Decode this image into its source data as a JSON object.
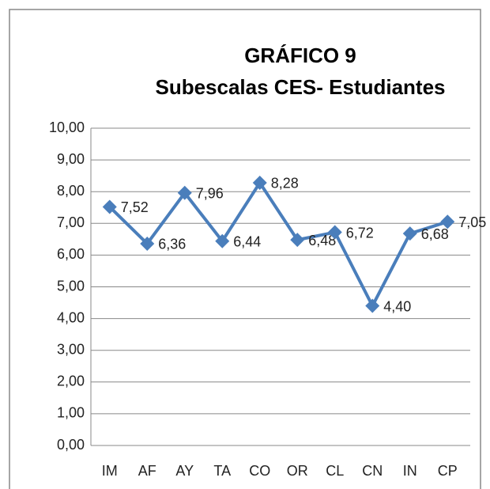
{
  "chart_data": {
    "type": "line",
    "title": [
      "GRÁFICO 9",
      "Subescalas CES- Estudiantes"
    ],
    "categories": [
      "IM",
      "AF",
      "AY",
      "TA",
      "CO",
      "OR",
      "CL",
      "CN",
      "IN",
      "CP"
    ],
    "series": [
      {
        "color": "#4a7ebb",
        "values": [
          7.52,
          6.36,
          7.96,
          6.44,
          8.28,
          6.48,
          6.72,
          4.4,
          6.68,
          7.05
        ],
        "value_labels": [
          "7,52",
          "6,36",
          "7,96",
          "6,44",
          "8,28",
          "6,48",
          "6,72",
          "4,40",
          "6,68",
          "7,05"
        ]
      }
    ],
    "ylim": [
      0,
      10
    ],
    "yticks": [
      {
        "value": 0,
        "label": "0,00"
      },
      {
        "value": 1,
        "label": "1,00"
      },
      {
        "value": 2,
        "label": "2,00"
      },
      {
        "value": 3,
        "label": "3,00"
      },
      {
        "value": 4,
        "label": "4,00"
      },
      {
        "value": 5,
        "label": "5,00"
      },
      {
        "value": 6,
        "label": "6,00"
      },
      {
        "value": 7,
        "label": "7,00"
      },
      {
        "value": 8,
        "label": "8,00"
      },
      {
        "value": 9,
        "label": "9,00"
      },
      {
        "value": 10,
        "label": "10,00"
      }
    ],
    "grid": true
  }
}
